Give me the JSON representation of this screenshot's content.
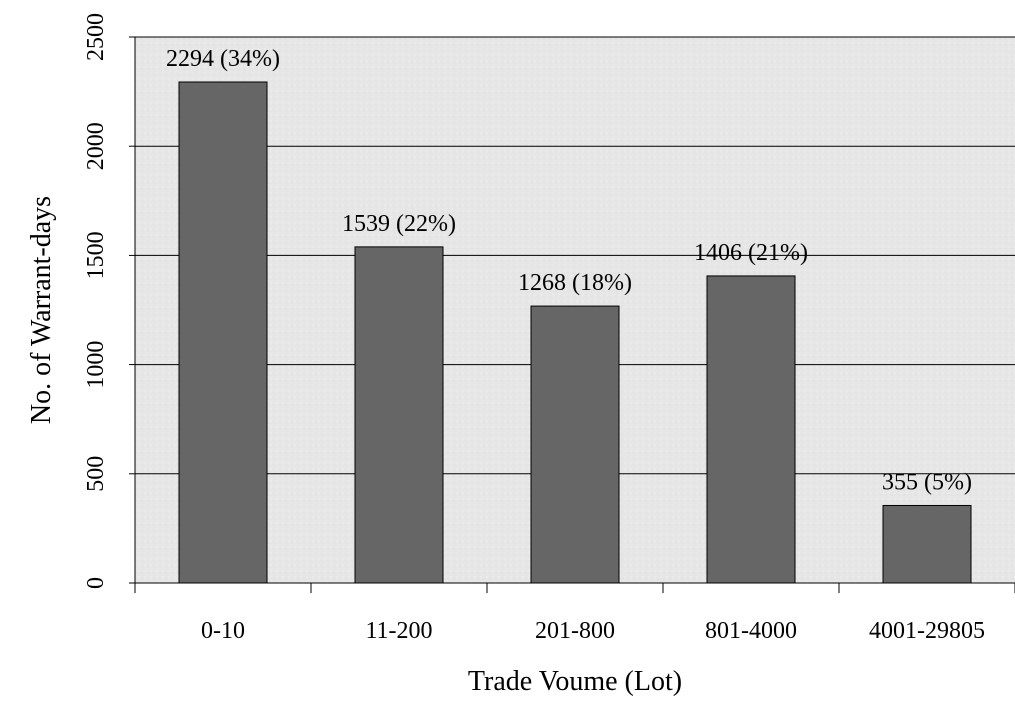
{
  "chart_data": {
    "type": "bar",
    "categories": [
      "0-10",
      "11-200",
      "201-800",
      "801-4000",
      "4001-29805"
    ],
    "values": [
      2294,
      1539,
      1268,
      1406,
      355
    ],
    "data_labels": [
      "2294 (34%)",
      "1539 (22%)",
      "1268 (18%)",
      "1406 (21%)",
      "355 (5%)"
    ],
    "xlabel": "Trade Voume (Lot)",
    "ylabel": "No. of Warrant-days",
    "ylim": [
      0,
      2500
    ],
    "yticks": [
      0,
      500,
      1000,
      1500,
      2000,
      2500
    ],
    "grid": true,
    "colors": {
      "bar": "#666666",
      "bar_stroke": "#000000",
      "plot_background": "#e8e8e8",
      "gridline": "#000000"
    }
  }
}
